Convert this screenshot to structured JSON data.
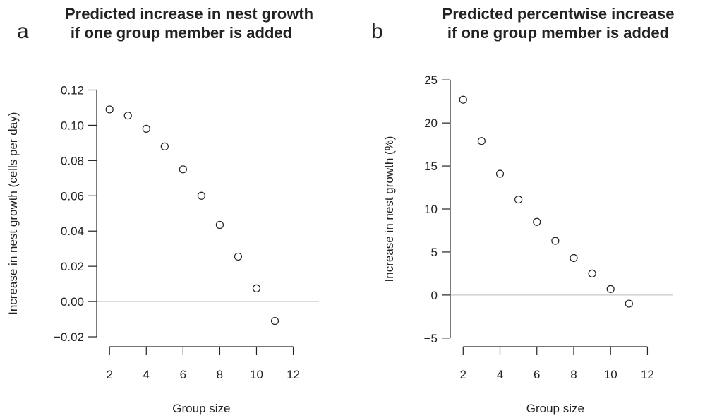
{
  "chart_data": [
    {
      "type": "scatter",
      "panel_label": "a",
      "title_lines": [
        "Predicted increase in nest growth",
        "if one group member is added"
      ],
      "xlabel": "Group size",
      "ylabel": "Increase in nest growth (cells per day)",
      "xlim": [
        1.3,
        13.4
      ],
      "ylim": [
        -0.026,
        0.125
      ],
      "x_ticks": [
        2,
        4,
        6,
        8,
        10,
        12
      ],
      "x_tick_labels": [
        "2",
        "4",
        "6",
        "8",
        "10",
        "12"
      ],
      "y_ticks": [
        -0.02,
        0.0,
        0.02,
        0.04,
        0.06,
        0.08,
        0.1,
        0.12
      ],
      "y_tick_labels": [
        "−0.02",
        "0.00",
        "0.02",
        "0.04",
        "0.06",
        "0.08",
        "0.10",
        "0.12"
      ],
      "reference_line_y": 0,
      "x": [
        2,
        3,
        4,
        5,
        6,
        7,
        8,
        9,
        10,
        11
      ],
      "y": [
        0.109,
        0.1055,
        0.098,
        0.088,
        0.075,
        0.06,
        0.0435,
        0.0255,
        0.0075,
        -0.011
      ]
    },
    {
      "type": "scatter",
      "panel_label": "b",
      "title_lines": [
        "Predicted percentwise increase",
        "if one group member is added"
      ],
      "xlabel": "Group size",
      "ylabel": "Increase in nest growth (%)",
      "xlim": [
        1.3,
        13.4
      ],
      "ylim": [
        -6,
        26
      ],
      "x_ticks": [
        2,
        4,
        6,
        8,
        10,
        12
      ],
      "x_tick_labels": [
        "2",
        "4",
        "6",
        "8",
        "10",
        "12"
      ],
      "y_ticks": [
        -5,
        0,
        5,
        10,
        15,
        20,
        25
      ],
      "y_tick_labels": [
        "−5",
        "0",
        "5",
        "10",
        "15",
        "20",
        "25"
      ],
      "reference_line_y": 0,
      "x": [
        2,
        3,
        4,
        5,
        6,
        7,
        8,
        9,
        10,
        11
      ],
      "y": [
        22.7,
        17.9,
        14.1,
        11.1,
        8.5,
        6.3,
        4.3,
        2.5,
        0.7,
        -1.0
      ]
    }
  ]
}
